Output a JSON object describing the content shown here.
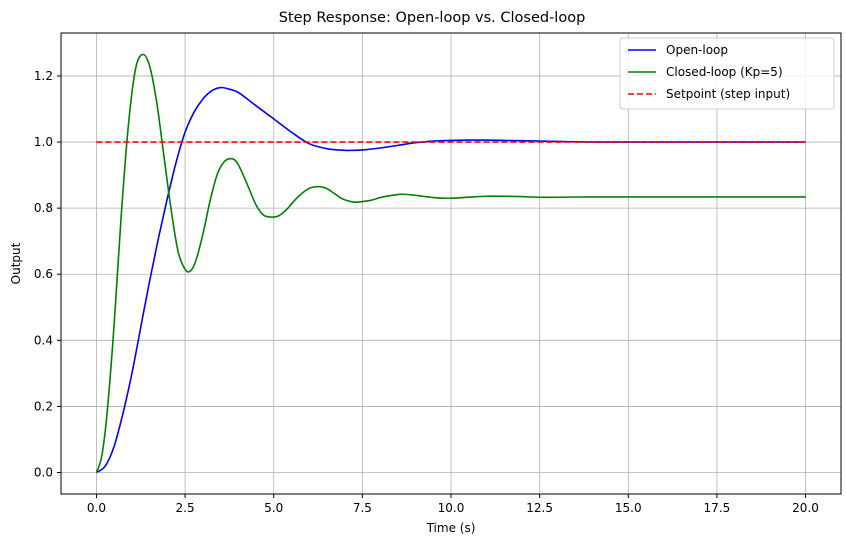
{
  "chart_data": {
    "type": "line",
    "title": "Step Response: Open-loop vs. Closed-loop",
    "xlabel": "Time (s)",
    "ylabel": "Output",
    "xlim": [
      -1.0,
      21.0
    ],
    "ylim": [
      -0.065,
      1.33
    ],
    "xticks": [
      0.0,
      2.5,
      5.0,
      7.5,
      10.0,
      12.5,
      15.0,
      17.5,
      20.0
    ],
    "xtick_labels": [
      "0.0",
      "2.5",
      "5.0",
      "7.5",
      "10.0",
      "12.5",
      "15.0",
      "17.5",
      "20.0"
    ],
    "yticks": [
      0.0,
      0.2,
      0.4,
      0.6,
      0.8,
      1.0,
      1.2
    ],
    "ytick_labels": [
      "0.0",
      "0.2",
      "0.4",
      "0.6",
      "0.8",
      "1.0",
      "1.2"
    ],
    "grid": true,
    "legend_position": "top-right",
    "series": [
      {
        "name": "Open-loop",
        "color": "#0000ff",
        "style": "solid",
        "x": [
          0,
          0.25,
          0.5,
          0.75,
          1.0,
          1.25,
          1.5,
          1.75,
          2.0,
          2.25,
          2.5,
          2.75,
          3.0,
          3.25,
          3.5,
          3.75,
          4.0,
          4.5,
          5.0,
          5.5,
          6.0,
          6.5,
          7.0,
          7.25,
          7.5,
          8.0,
          8.5,
          9.0,
          9.5,
          10.0,
          10.5,
          11.0,
          11.5,
          12.0,
          13.0,
          14.0,
          15.0,
          16.0,
          17.0,
          18.0,
          19.0,
          20.0
        ],
        "y": [
          0.0,
          0.02,
          0.08,
          0.18,
          0.3,
          0.44,
          0.58,
          0.71,
          0.83,
          0.94,
          1.03,
          1.09,
          1.13,
          1.155,
          1.165,
          1.16,
          1.15,
          1.11,
          1.07,
          1.03,
          0.995,
          0.98,
          0.975,
          0.975,
          0.976,
          0.982,
          0.99,
          0.998,
          1.003,
          1.005,
          1.006,
          1.006,
          1.005,
          1.004,
          1.002,
          1.0,
          1.0,
          1.0,
          1.0,
          1.0,
          1.0,
          1.0
        ]
      },
      {
        "name": "Closed-loop (Kp=5)",
        "color": "#008000",
        "style": "solid",
        "x": [
          0,
          0.15,
          0.3,
          0.5,
          0.7,
          0.9,
          1.1,
          1.3,
          1.5,
          1.7,
          1.9,
          2.1,
          2.3,
          2.5,
          2.65,
          2.8,
          3.0,
          3.2,
          3.4,
          3.6,
          3.8,
          3.95,
          4.1,
          4.3,
          4.5,
          4.7,
          4.9,
          5.1,
          5.25,
          5.4,
          5.6,
          5.8,
          6.0,
          6.2,
          6.4,
          6.55,
          6.7,
          6.9,
          7.1,
          7.3,
          7.5,
          7.7,
          7.85,
          8.0,
          8.3,
          8.6,
          8.9,
          9.2,
          9.5,
          9.8,
          10.2,
          10.6,
          11.0,
          11.5,
          12.0,
          12.5,
          13.0,
          14.0,
          15.0,
          16.0,
          18.0,
          20.0
        ],
        "y": [
          0.0,
          0.05,
          0.18,
          0.45,
          0.78,
          1.05,
          1.22,
          1.265,
          1.23,
          1.12,
          0.96,
          0.8,
          0.67,
          0.615,
          0.61,
          0.64,
          0.72,
          0.82,
          0.9,
          0.94,
          0.95,
          0.94,
          0.91,
          0.86,
          0.81,
          0.78,
          0.773,
          0.775,
          0.785,
          0.8,
          0.825,
          0.845,
          0.86,
          0.865,
          0.863,
          0.856,
          0.845,
          0.83,
          0.822,
          0.818,
          0.82,
          0.823,
          0.827,
          0.832,
          0.838,
          0.842,
          0.84,
          0.836,
          0.832,
          0.83,
          0.831,
          0.834,
          0.836,
          0.836,
          0.835,
          0.833,
          0.833,
          0.834,
          0.834,
          0.834,
          0.834,
          0.834
        ]
      },
      {
        "name": "Setpoint (step input)",
        "color": "#ff0000",
        "style": "dashed",
        "x": [
          0,
          20
        ],
        "y": [
          1.0,
          1.0
        ]
      }
    ]
  }
}
